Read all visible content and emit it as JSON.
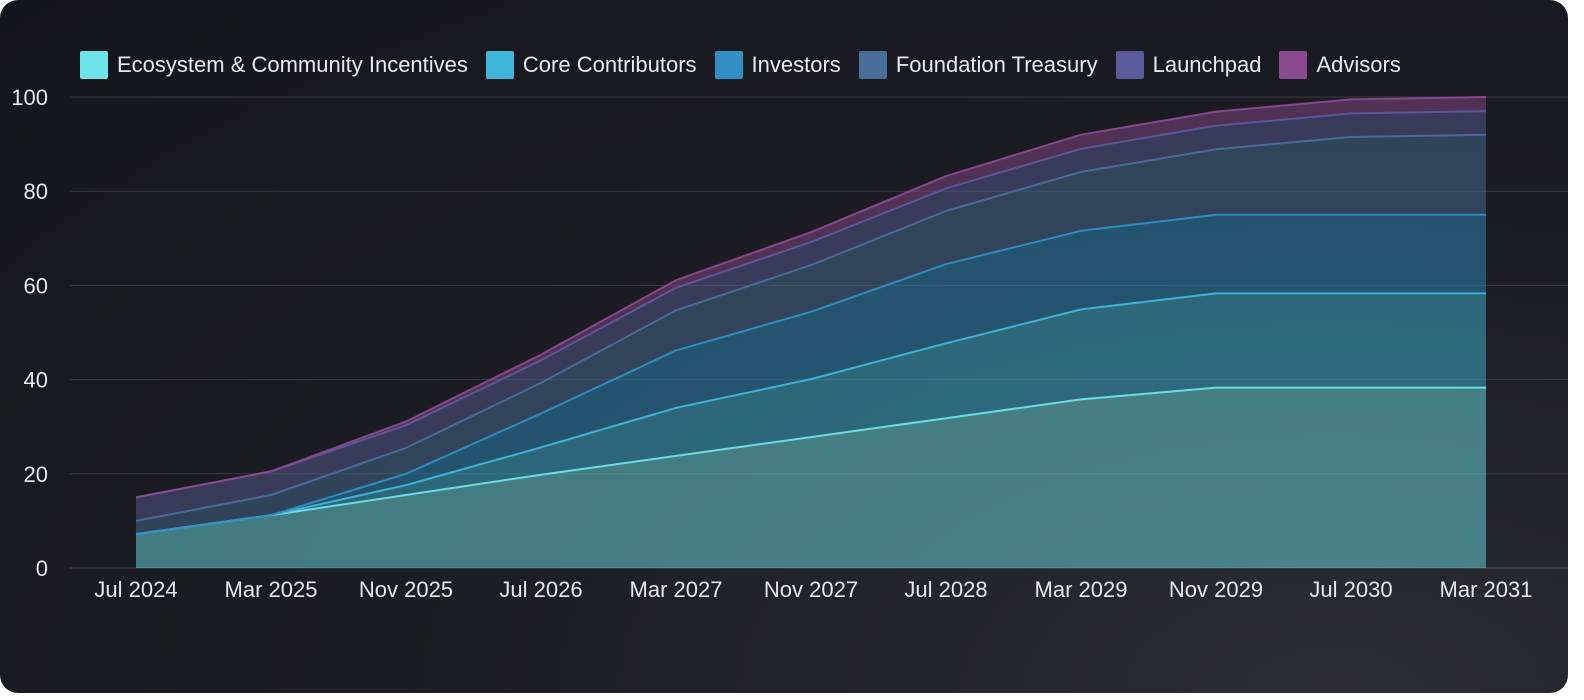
{
  "chart_data": {
    "type": "area",
    "stacked": true,
    "title": "",
    "xlabel": "",
    "ylabel": "",
    "ylim": [
      0,
      100
    ],
    "y_ticks": [
      0,
      20,
      40,
      60,
      80,
      100
    ],
    "grid": true,
    "legend_position": "top",
    "x_tick_labels": [
      "Jul 2024",
      "Mar 2025",
      "Nov 2025",
      "Jul 2026",
      "Mar 2027",
      "Nov 2027",
      "Jul 2028",
      "Mar 2029",
      "Nov 2029",
      "Jul 2030",
      "Mar 2031"
    ],
    "x": [
      "Jul 2024",
      "Mar 2025",
      "Nov 2025",
      "Jul 2026",
      "Mar 2027",
      "Nov 2027",
      "Jul 2028",
      "Mar 2029",
      "Nov 2029",
      "Jul 2030",
      "Mar 2031"
    ],
    "series": [
      {
        "name": "Ecosystem & Community Incentives",
        "color": "#6ee3ea",
        "values": [
          7.2,
          11.2,
          15.5,
          19.8,
          23.8,
          27.8,
          31.8,
          35.8,
          38.3,
          38.3,
          38.3
        ]
      },
      {
        "name": "Core Contributors",
        "color": "#3fb6d9",
        "values": [
          0,
          0,
          2.1,
          5.8,
          10.2,
          12.3,
          15.9,
          19.1,
          20.0,
          20.0,
          20.0
        ]
      },
      {
        "name": "Investors",
        "color": "#2f8fc4",
        "values": [
          0,
          0,
          2.4,
          7.2,
          12.2,
          14.3,
          16.8,
          16.7,
          16.7,
          16.7,
          16.7
        ]
      },
      {
        "name": "Foundation Treasury",
        "color": "#4a6e9a",
        "values": [
          2.8,
          4.3,
          5.5,
          6.5,
          8.5,
          9.9,
          11.3,
          12.5,
          13.9,
          16.5,
          17.0
        ]
      },
      {
        "name": "Launchpad",
        "color": "#5b5b9b",
        "values": [
          5.0,
          5.0,
          4.8,
          4.8,
          4.8,
          4.9,
          4.8,
          4.9,
          5.0,
          5.0,
          5.0
        ]
      },
      {
        "name": "Advisors",
        "color": "#8b4a8f",
        "values": [
          0,
          0,
          0.8,
          1.2,
          1.6,
          2.1,
          2.6,
          3.0,
          3.0,
          3.0,
          3.0
        ]
      }
    ]
  }
}
